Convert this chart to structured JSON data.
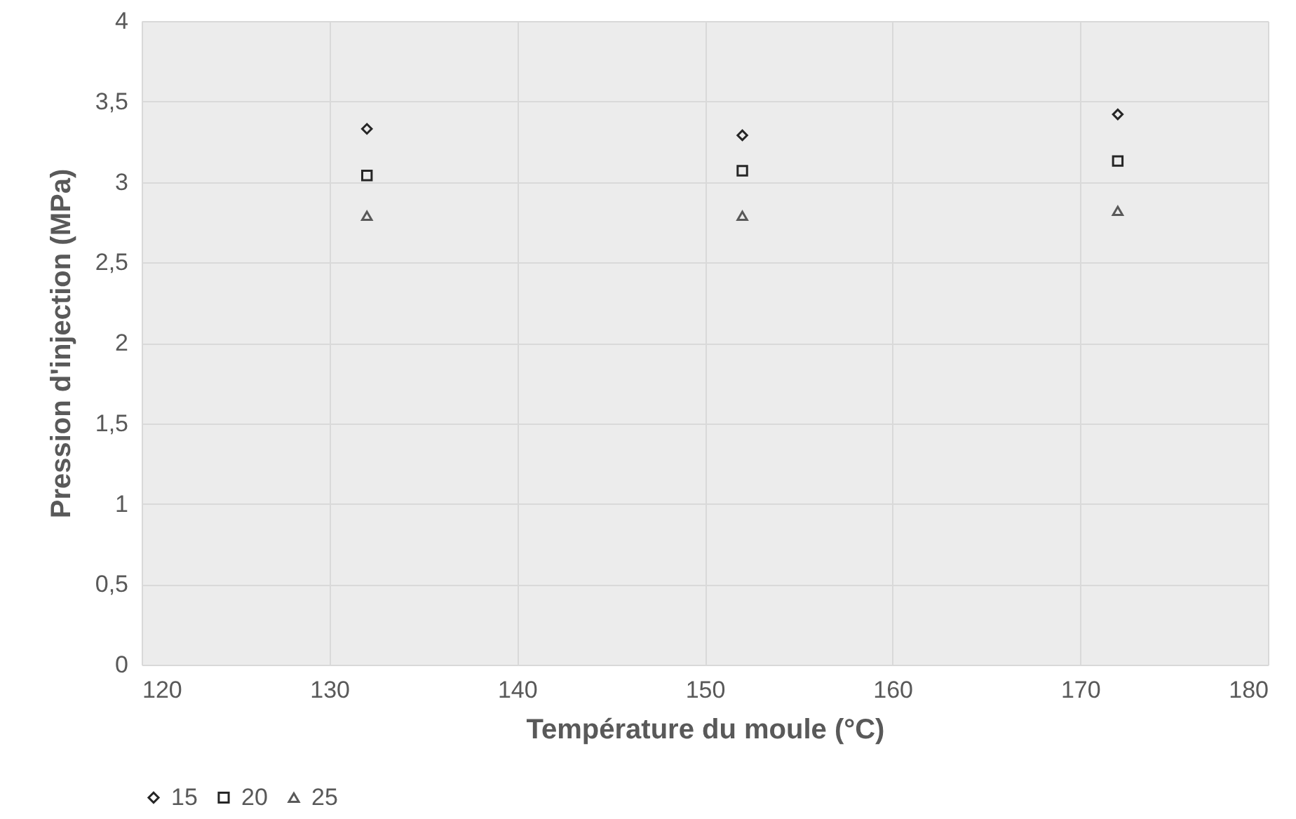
{
  "chart_data": {
    "type": "scatter",
    "xlabel": "Température du moule (°C)",
    "ylabel": "Pression d'injection (MPa)",
    "x": [
      132,
      152,
      172
    ],
    "series": [
      {
        "name": "15",
        "color": "#262626",
        "marker": "diamond",
        "values": [
          3.33,
          3.29,
          3.42
        ]
      },
      {
        "name": "20",
        "color": "#262626",
        "marker": "square",
        "values": [
          3.04,
          3.07,
          3.13
        ]
      },
      {
        "name": "25",
        "color": "#595959",
        "marker": "triangle",
        "values": [
          2.79,
          2.79,
          2.82
        ]
      }
    ],
    "xlim": [
      120,
      180
    ],
    "xticks": [
      120,
      130,
      140,
      150,
      160,
      170,
      180
    ],
    "ylim": [
      0,
      4
    ],
    "yticks": [
      0,
      {
        "value": 0.5,
        "label": "0,5"
      },
      1,
      {
        "value": 1.5,
        "label": "1,5"
      },
      2,
      {
        "value": 2.5,
        "label": "2,5"
      },
      3,
      {
        "value": 3.5,
        "label": "3,5"
      },
      4
    ],
    "grid": true,
    "legend": "bottom"
  }
}
